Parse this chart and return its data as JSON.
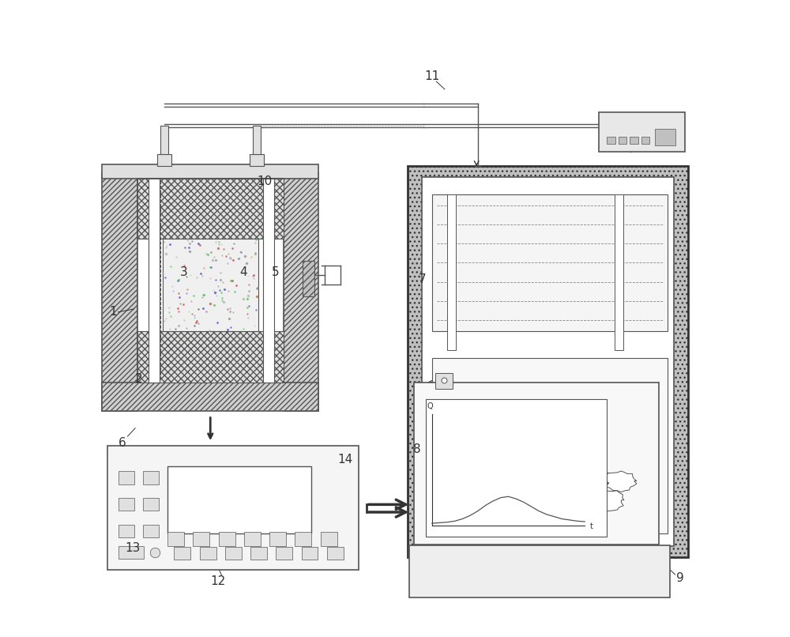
{
  "bg_color": "#ffffff",
  "line_color": "#555555",
  "dark_color": "#333333",
  "light_gray": "#aaaaaa",
  "medium_gray": "#888888"
}
